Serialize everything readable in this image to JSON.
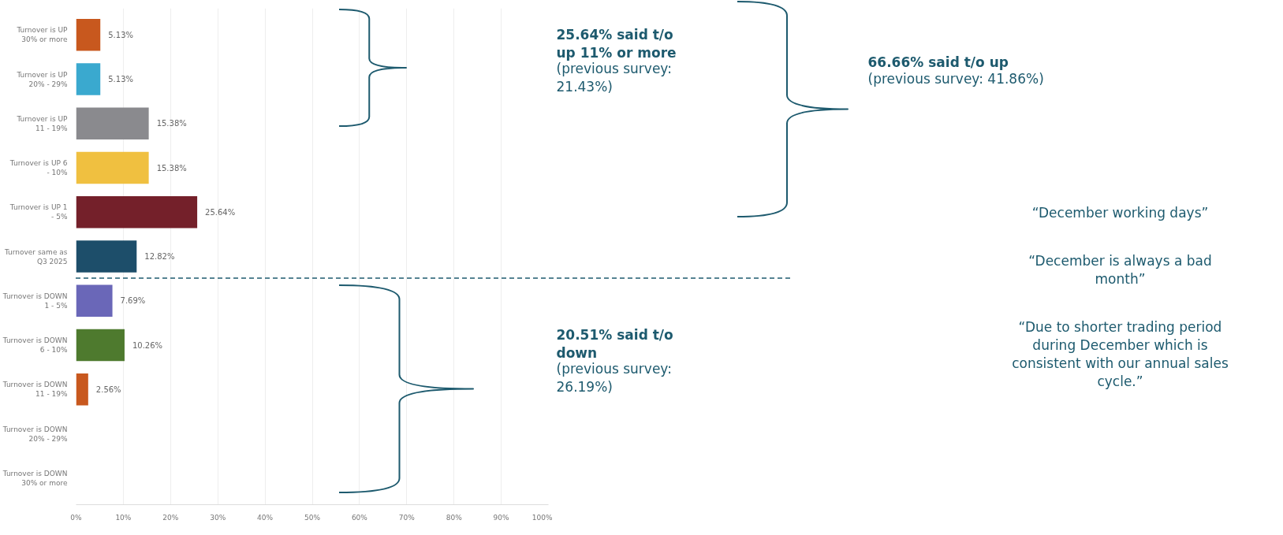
{
  "chart_data": {
    "type": "bar",
    "orientation": "horizontal",
    "categories": [
      "Turnover is UP 30% or more",
      "Turnover is UP 20% - 29%",
      "Turnover is UP 11 - 19%",
      "Turnover is UP 6 - 10%",
      "Turnover is UP 1 - 5%",
      "Turnover same as Q3 2025",
      "Turnover is DOWN 1 - 5%",
      "Turnover is DOWN 6 - 10%",
      "Turnover is DOWN 11 - 19%",
      "Turnover is DOWN 20% - 29%",
      "Turnover is DOWN 30% or more"
    ],
    "values": [
      5.13,
      5.13,
      15.38,
      15.38,
      25.64,
      12.82,
      7.69,
      10.26,
      2.56,
      null,
      null
    ],
    "colors": [
      "#c8581e",
      "#3aa9cf",
      "#8a8a8e",
      "#f0c040",
      "#74202a",
      "#1d4e6a",
      "#6a67b8",
      "#4e7a2e",
      "#c8581e",
      "#cccccc",
      "#cccccc"
    ],
    "value_labels": [
      "5.13%",
      "5.13%",
      "15.38%",
      "15.38%",
      "25.64%",
      "12.82%",
      "7.69%",
      "10.26%",
      "2.56%",
      null,
      null
    ],
    "xlim": [
      0,
      100
    ],
    "xticks": [
      {
        "value": 0,
        "label": "0%"
      },
      {
        "value": 10,
        "label": "10%"
      },
      {
        "value": 20,
        "label": "20%"
      },
      {
        "value": 30,
        "label": "30%"
      },
      {
        "value": 40,
        "label": "40%"
      },
      {
        "value": 50,
        "label": "50%"
      },
      {
        "value": 60,
        "label": "60%"
      },
      {
        "value": 70,
        "label": "70%"
      },
      {
        "value": 80,
        "label": "80%"
      },
      {
        "value": 90,
        "label": "90%"
      },
      {
        "value": 100,
        "label": "100%"
      }
    ],
    "grid": "x",
    "annotations": [
      "25.64% said t/o up 11% or more",
      "(previous survey: 21.43%)",
      "66.66% said t/o up",
      "(previous survey: 41.86%)",
      "20.51% said t/o down",
      "(previous survey: 26.19%)",
      "“December working days”",
      "“December is always a bad month”",
      "“Due to shorter trading period during December which is consistent with our annual sales cycle.”"
    ]
  }
}
